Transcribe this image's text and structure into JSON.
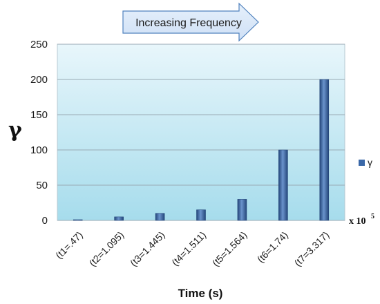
{
  "chart_data": {
    "type": "bar",
    "categories": [
      "(t1=.47)",
      "(t2=1.095)",
      "(t3=1.445)",
      "(t4=1.511)",
      "(t5=1.564)",
      "(t6=1.74)",
      "(t7=3.317)"
    ],
    "series": [
      {
        "name": "γ",
        "values": [
          1,
          5,
          10,
          15,
          30,
          100,
          200
        ]
      }
    ],
    "xlabel": "Time (s)",
    "ylabel": "γ",
    "ylim": [
      0,
      250
    ],
    "yticks": [
      "0",
      "50",
      "100",
      "150",
      "200",
      "250"
    ],
    "grid": true,
    "legend": "right",
    "annotation": "Increasing Frequency",
    "axis_multiplier": {
      "base": "x 10",
      "exponent": "5"
    },
    "colors": {
      "bar": "#3a68a8",
      "bar_dark": "#24467a",
      "bar_light": "#6a93cc",
      "plot_bg_top": "#e8f6fb",
      "plot_bg_bottom": "#a6dcec",
      "grid": "#9aaab4",
      "arrow_fill": "#cfe0f6",
      "arrow_stroke": "#4f81bd"
    }
  }
}
